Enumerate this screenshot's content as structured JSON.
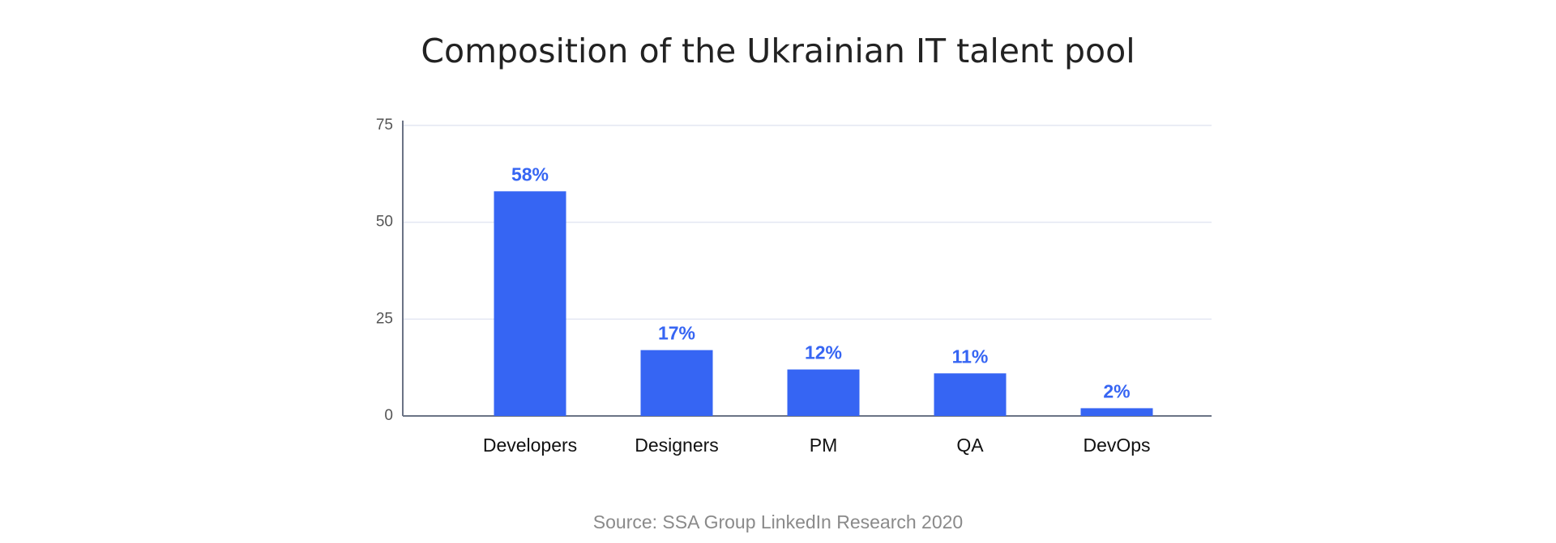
{
  "chart_data": {
    "type": "bar",
    "title": "Composition of the Ukrainian IT talent pool",
    "source": "Source: SSA Group LinkedIn Research 2020",
    "categories": [
      "Developers",
      "Designers",
      "PM",
      "QA",
      "DevOps"
    ],
    "values": [
      58,
      17,
      12,
      11,
      2
    ],
    "value_labels": [
      "58%",
      "17%",
      "12%",
      "11%",
      "2%"
    ],
    "color": "#3665f3",
    "ylim": [
      0,
      75
    ],
    "yticks": [
      0,
      25,
      50,
      75
    ],
    "grid": true
  }
}
